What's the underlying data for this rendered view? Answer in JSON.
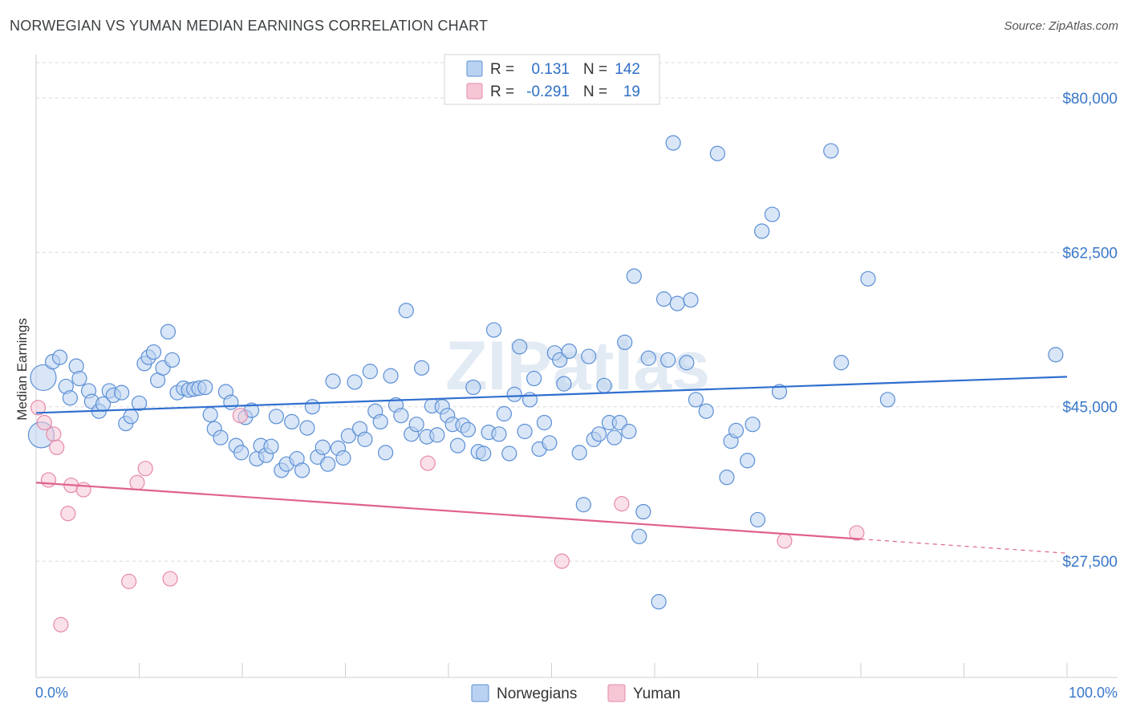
{
  "title": "NORWEGIAN VS YUMAN MEDIAN EARNINGS CORRELATION CHART",
  "source": "Source: ZipAtlas.com",
  "watermark": "ZIPatlas",
  "colors": {
    "blue": "#5b8fd6",
    "blue_fill": "#b9d2f1",
    "blue_line": "#2f6fcf",
    "pink": "#e68aa8",
    "pink_fill": "#f6c6d5",
    "pink_line": "#e0628c",
    "tick_text": "#3a78c9",
    "grid": "#d8d8d8"
  },
  "legend": {
    "rows": [
      {
        "r_label": "R =",
        "r_value": "0.131",
        "n_label": "N =",
        "n_value": "142"
      },
      {
        "r_label": "R =",
        "r_value": "-0.291",
        "n_label": "N =",
        "n_value": "19"
      }
    ]
  },
  "chart_data": {
    "type": "scatter",
    "title": "NORWEGIAN VS YUMAN MEDIAN EARNINGS CORRELATION CHART",
    "xlabel": "",
    "ylabel": "Median Earnings",
    "xlim": [
      0,
      100
    ],
    "ylim": [
      14500,
      84000
    ],
    "x_tick_labels": [
      "0.0%",
      "100.0%"
    ],
    "y_ticks": [
      80000,
      62500,
      45000,
      27500
    ],
    "y_tick_labels": [
      "$80,000",
      "$62,500",
      "$45,000",
      "$27,500"
    ],
    "grid": true,
    "legend_position": "top-center",
    "series": [
      {
        "name": "Norwegians",
        "r": 0.131,
        "n": 142,
        "trend": {
          "x": [
            0,
            100
          ],
          "y": [
            44300,
            48400
          ]
        },
        "points": [
          [
            0.5,
            41800,
            16
          ],
          [
            0.7,
            48300,
            16
          ],
          [
            1.6,
            50100,
            9
          ],
          [
            2.3,
            50600,
            9
          ],
          [
            2.9,
            47300,
            9
          ],
          [
            3.3,
            46000,
            9
          ],
          [
            3.9,
            49600,
            9
          ],
          [
            4.2,
            48200,
            9
          ],
          [
            5.1,
            46800,
            9
          ],
          [
            5.4,
            45600,
            9
          ],
          [
            6.1,
            44500,
            9
          ],
          [
            6.5,
            45300,
            9
          ],
          [
            7.1,
            46800,
            9
          ],
          [
            7.5,
            46300,
            9
          ],
          [
            8.3,
            46600,
            9
          ],
          [
            8.7,
            43100,
            9
          ],
          [
            9.2,
            43900,
            9
          ],
          [
            10.0,
            45400,
            9
          ],
          [
            10.5,
            49900,
            9
          ],
          [
            10.9,
            50600,
            9
          ],
          [
            11.4,
            51200,
            9
          ],
          [
            11.8,
            48000,
            9
          ],
          [
            12.3,
            49400,
            9
          ],
          [
            12.8,
            53500,
            9
          ],
          [
            13.2,
            50300,
            9
          ],
          [
            13.7,
            46600,
            9
          ],
          [
            14.3,
            47100,
            9
          ],
          [
            14.8,
            46900,
            9
          ],
          [
            15.3,
            47000,
            9
          ],
          [
            15.8,
            47100,
            9
          ],
          [
            16.4,
            47200,
            9
          ],
          [
            16.9,
            44100,
            9
          ],
          [
            17.3,
            42500,
            9
          ],
          [
            17.9,
            41500,
            9
          ],
          [
            18.4,
            46700,
            9
          ],
          [
            18.9,
            45500,
            9
          ],
          [
            19.4,
            40600,
            9
          ],
          [
            19.9,
            39800,
            9
          ],
          [
            20.3,
            43800,
            9
          ],
          [
            20.9,
            44600,
            9
          ],
          [
            21.4,
            39100,
            9
          ],
          [
            21.8,
            40600,
            9
          ],
          [
            22.3,
            39500,
            9
          ],
          [
            22.8,
            40500,
            9
          ],
          [
            23.3,
            43900,
            9
          ],
          [
            23.8,
            37800,
            9
          ],
          [
            24.3,
            38500,
            9
          ],
          [
            24.8,
            43300,
            9
          ],
          [
            25.3,
            39100,
            9
          ],
          [
            25.8,
            37800,
            9
          ],
          [
            26.3,
            42600,
            9
          ],
          [
            26.8,
            45000,
            9
          ],
          [
            27.3,
            39300,
            9
          ],
          [
            27.8,
            40400,
            9
          ],
          [
            28.3,
            38500,
            9
          ],
          [
            28.8,
            47900,
            9
          ],
          [
            29.3,
            40300,
            9
          ],
          [
            29.8,
            39200,
            9
          ],
          [
            30.3,
            41700,
            9
          ],
          [
            30.9,
            47800,
            9
          ],
          [
            31.4,
            42500,
            9
          ],
          [
            31.9,
            41300,
            9
          ],
          [
            32.4,
            49000,
            9
          ],
          [
            32.9,
            44500,
            9
          ],
          [
            33.4,
            43300,
            9
          ],
          [
            33.9,
            39800,
            9
          ],
          [
            34.4,
            48500,
            9
          ],
          [
            34.9,
            45200,
            9
          ],
          [
            35.4,
            44000,
            9
          ],
          [
            35.9,
            55900,
            9
          ],
          [
            36.4,
            41900,
            9
          ],
          [
            36.9,
            43000,
            9
          ],
          [
            37.4,
            49400,
            9
          ],
          [
            37.9,
            41600,
            9
          ],
          [
            38.4,
            45100,
            9
          ],
          [
            38.9,
            41800,
            9
          ],
          [
            39.4,
            45000,
            9
          ],
          [
            39.9,
            44000,
            9
          ],
          [
            40.4,
            43000,
            9
          ],
          [
            40.9,
            40600,
            9
          ],
          [
            41.4,
            42900,
            9
          ],
          [
            41.9,
            42400,
            9
          ],
          [
            42.4,
            47200,
            9
          ],
          [
            42.9,
            39900,
            9
          ],
          [
            43.4,
            39700,
            9
          ],
          [
            43.9,
            42100,
            9
          ],
          [
            44.4,
            53700,
            9
          ],
          [
            44.9,
            41900,
            9
          ],
          [
            45.4,
            44200,
            9
          ],
          [
            45.9,
            39700,
            9
          ],
          [
            46.4,
            46400,
            9
          ],
          [
            46.9,
            51800,
            9
          ],
          [
            47.4,
            42200,
            9
          ],
          [
            47.9,
            45800,
            9
          ],
          [
            48.3,
            48200,
            9
          ],
          [
            48.8,
            40200,
            9
          ],
          [
            49.3,
            43200,
            9
          ],
          [
            49.8,
            40900,
            9
          ],
          [
            50.3,
            51100,
            9
          ],
          [
            50.8,
            50300,
            9
          ],
          [
            51.2,
            47600,
            9
          ],
          [
            51.7,
            51300,
            9
          ],
          [
            52.7,
            39800,
            9
          ],
          [
            53.1,
            33900,
            9
          ],
          [
            53.6,
            50700,
            9
          ],
          [
            54.1,
            41300,
            9
          ],
          [
            54.6,
            41900,
            9
          ],
          [
            55.1,
            47400,
            9
          ],
          [
            55.6,
            43200,
            9
          ],
          [
            56.1,
            41500,
            9
          ],
          [
            56.6,
            43200,
            9
          ],
          [
            57.1,
            52300,
            9
          ],
          [
            57.5,
            42200,
            9
          ],
          [
            58.0,
            59800,
            9
          ],
          [
            58.5,
            30300,
            9
          ],
          [
            58.9,
            33100,
            9
          ],
          [
            59.4,
            50500,
            9
          ],
          [
            60.4,
            22900,
            9
          ],
          [
            60.9,
            57200,
            9
          ],
          [
            61.3,
            50300,
            9
          ],
          [
            61.8,
            74900,
            9
          ],
          [
            62.2,
            56700,
            9
          ],
          [
            63.1,
            50000,
            9
          ],
          [
            63.5,
            57100,
            9
          ],
          [
            64.0,
            45800,
            9
          ],
          [
            65.0,
            44500,
            9
          ],
          [
            66.1,
            73700,
            9
          ],
          [
            67.0,
            37000,
            9
          ],
          [
            67.4,
            41100,
            9
          ],
          [
            67.9,
            42300,
            9
          ],
          [
            69.0,
            38900,
            9
          ],
          [
            69.5,
            43000,
            9
          ],
          [
            70.0,
            32200,
            9
          ],
          [
            70.4,
            64900,
            9
          ],
          [
            71.4,
            66800,
            9
          ],
          [
            72.1,
            46700,
            9
          ],
          [
            77.1,
            74000,
            9
          ],
          [
            78.1,
            50000,
            9
          ],
          [
            80.7,
            59500,
            9
          ],
          [
            82.6,
            45800,
            9
          ],
          [
            98.9,
            50900,
            9
          ]
        ]
      },
      {
        "name": "Yuman",
        "r": -0.291,
        "n": 19,
        "trend": {
          "x": [
            0,
            80
          ],
          "y": [
            36400,
            30000
          ]
        },
        "trend_dashed": {
          "x": [
            80,
            100
          ],
          "y": [
            30000,
            28400
          ]
        },
        "points": [
          [
            0.2,
            44900,
            9
          ],
          [
            0.8,
            43200,
            9
          ],
          [
            1.7,
            41900,
            9
          ],
          [
            2.0,
            40400,
            9
          ],
          [
            1.2,
            36700,
            9
          ],
          [
            2.4,
            20300,
            9
          ],
          [
            3.1,
            32900,
            9
          ],
          [
            3.4,
            36100,
            9
          ],
          [
            4.6,
            35600,
            9
          ],
          [
            9.0,
            25200,
            9
          ],
          [
            9.8,
            36400,
            9
          ],
          [
            10.6,
            38000,
            9
          ],
          [
            13.0,
            25500,
            9
          ],
          [
            19.8,
            44000,
            9
          ],
          [
            38.0,
            38600,
            9
          ],
          [
            51.0,
            27500,
            9
          ],
          [
            56.8,
            34000,
            9
          ],
          [
            72.6,
            29800,
            9
          ],
          [
            79.6,
            30700,
            9
          ]
        ]
      }
    ]
  }
}
